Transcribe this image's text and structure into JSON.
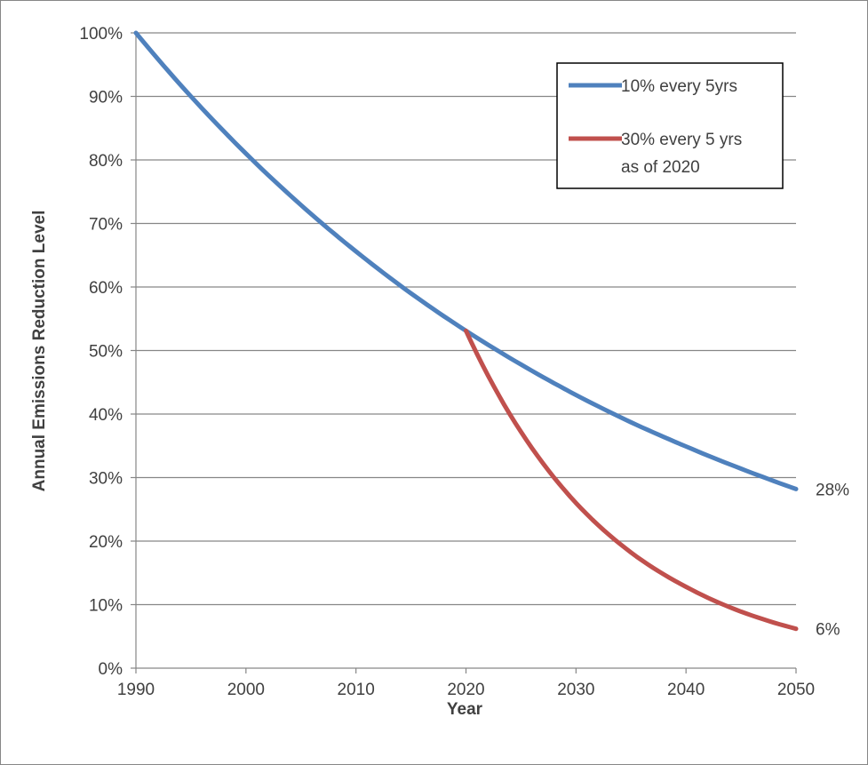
{
  "chart_data": {
    "type": "line",
    "title": "",
    "xlabel": "Year",
    "ylabel": "Annual Emissions Reduction Level",
    "xlim": [
      1990,
      2050
    ],
    "ylim": [
      0,
      100
    ],
    "x_ticks": [
      "1990",
      "2000",
      "2010",
      "2020",
      "2030",
      "2040",
      "2050"
    ],
    "y_ticks": [
      "0%",
      "10%",
      "20%",
      "30%",
      "40%",
      "50%",
      "60%",
      "70%",
      "80%",
      "90%",
      "100%"
    ],
    "grid": true,
    "legend_position": "top-right",
    "series": [
      {
        "name": "10% every 5yrs",
        "color": "#4F81BD",
        "x": [
          1990,
          1995,
          2000,
          2005,
          2010,
          2015,
          2020,
          2025,
          2030,
          2035,
          2040,
          2045,
          2050
        ],
        "y": [
          100,
          90,
          81,
          72.9,
          65.6,
          59,
          53.1,
          47.8,
          43,
          38.7,
          34.9,
          31.4,
          28.2
        ]
      },
      {
        "name": "30% every 5 yrs as of 2020",
        "legend_lines": [
          "30% every 5 yrs",
          "as of 2020"
        ],
        "color": "#C0504D",
        "x": [
          2020,
          2025,
          2030,
          2035,
          2040,
          2045,
          2050
        ],
        "y": [
          53.1,
          37.2,
          26,
          18.2,
          12.8,
          8.9,
          6.2
        ]
      }
    ],
    "annotations": [
      {
        "text": "28%",
        "x": 2050,
        "y": 28.2
      },
      {
        "text": "6%",
        "x": 2050,
        "y": 6.2
      }
    ]
  }
}
